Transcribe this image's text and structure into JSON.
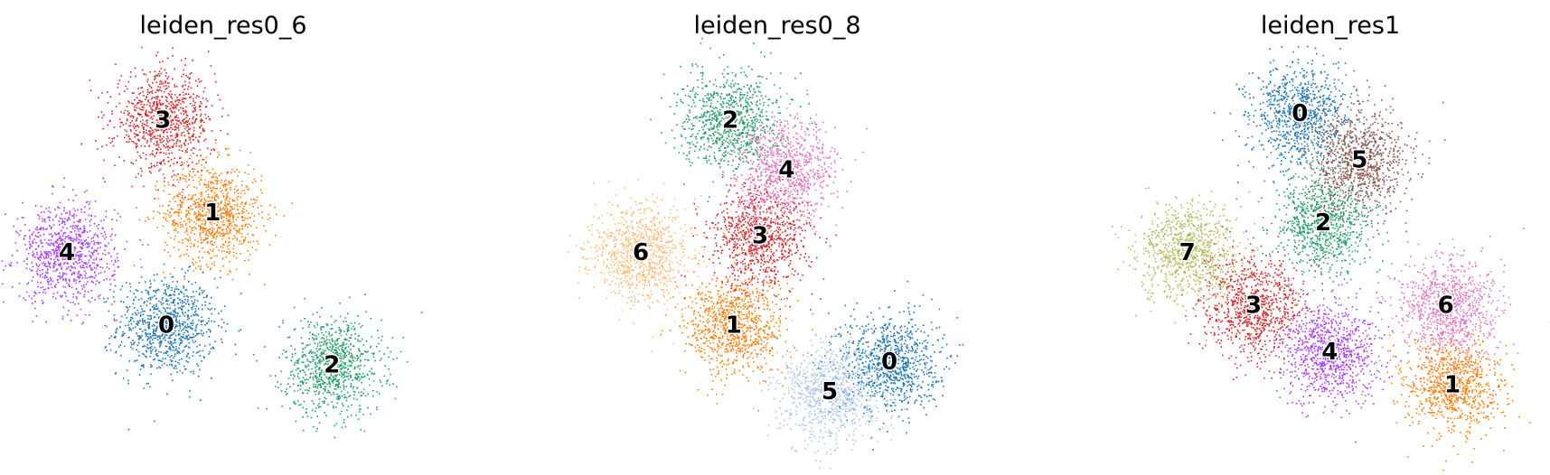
{
  "chart_data": [
    {
      "type": "scatter",
      "title": "leiden_res0_6",
      "xlabel": "",
      "ylabel": "",
      "axes_visible": false,
      "legend": "on data",
      "clusters": [
        {
          "label": "0",
          "color": "#1f77b4",
          "center": [
            -1.8,
            -2.2
          ]
        },
        {
          "label": "1",
          "color": "#ff7f0e",
          "center": [
            -0.4,
            1.2
          ]
        },
        {
          "label": "2",
          "color": "#279e68",
          "center": [
            3.2,
            -3.4
          ]
        },
        {
          "label": "3",
          "color": "#d62728",
          "center": [
            -1.9,
            4.0
          ]
        },
        {
          "label": "4",
          "color": "#aa40fc",
          "center": [
            -4.8,
            0.0
          ]
        }
      ]
    },
    {
      "type": "scatter",
      "title": "leiden_res0_8",
      "xlabel": "",
      "ylabel": "",
      "axes_visible": false,
      "legend": "on data",
      "clusters": [
        {
          "label": "0",
          "color": "#1f77b4",
          "center": [
            3.3,
            -3.3
          ]
        },
        {
          "label": "1",
          "color": "#ff7f0e",
          "center": [
            -1.4,
            -2.2
          ]
        },
        {
          "label": "2",
          "color": "#279e68",
          "center": [
            -1.5,
            4.0
          ]
        },
        {
          "label": "3",
          "color": "#d62728",
          "center": [
            -0.6,
            0.5
          ]
        },
        {
          "label": "4",
          "color": "#e377c2",
          "center": [
            0.2,
            2.5
          ]
        },
        {
          "label": "5",
          "color": "#aec7e8",
          "center": [
            1.5,
            -4.2
          ]
        },
        {
          "label": "6",
          "color": "#ffbb78",
          "center": [
            -4.2,
            0.0
          ]
        }
      ]
    },
    {
      "type": "scatter",
      "title": "leiden_res1",
      "xlabel": "",
      "ylabel": "",
      "axes_visible": false,
      "legend": "on data",
      "clusters": [
        {
          "label": "0",
          "color": "#1f77b4",
          "center": [
            -1.0,
            4.2
          ]
        },
        {
          "label": "1",
          "color": "#ff7f0e",
          "center": [
            3.6,
            -4.0
          ]
        },
        {
          "label": "2",
          "color": "#279e68",
          "center": [
            -0.3,
            0.9
          ]
        },
        {
          "label": "3",
          "color": "#d62728",
          "center": [
            -2.4,
            -1.6
          ]
        },
        {
          "label": "4",
          "color": "#aa40fc",
          "center": [
            -0.1,
            -3.0
          ]
        },
        {
          "label": "5",
          "color": "#8c564b",
          "center": [
            0.8,
            2.8
          ]
        },
        {
          "label": "6",
          "color": "#e377c2",
          "center": [
            3.4,
            -1.6
          ]
        },
        {
          "label": "7",
          "color": "#b5bd61",
          "center": [
            -4.4,
            0.0
          ]
        }
      ]
    }
  ]
}
